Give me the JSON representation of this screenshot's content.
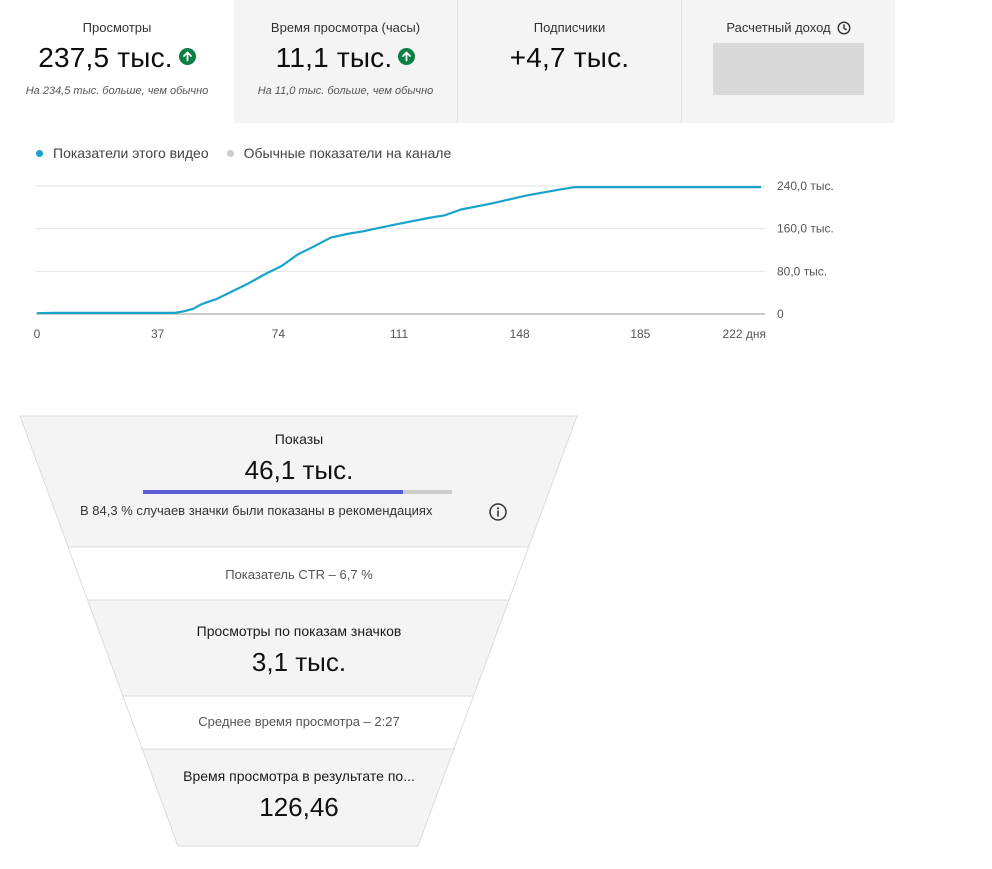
{
  "metrics": [
    {
      "label": "Просмотры",
      "value": "237,5 тыс.",
      "trend": "up",
      "note": "На 234,5 тыс. больше, чем обычно"
    },
    {
      "label": "Время просмотра (часы)",
      "value": "11,1 тыс.",
      "trend": "up",
      "note": "На 11,0 тыс. больше, чем обычно"
    },
    {
      "label": "Подписчики",
      "value": "+4,7 тыс."
    },
    {
      "label": "Расчетный доход",
      "icon": "clock-icon",
      "masked": true
    }
  ],
  "legend": [
    {
      "label": "Показатели этого видео",
      "color": "#1aa3c8"
    },
    {
      "label": "Обычные показатели на канале",
      "color": "#cccccc"
    }
  ],
  "chart_data": {
    "type": "line",
    "x_tick_labels": [
      "0",
      "37",
      "74",
      "111",
      "148",
      "185",
      "222 дня"
    ],
    "x_ticks": [
      0,
      37,
      74,
      111,
      148,
      185,
      222
    ],
    "y_tick_labels": [
      "240,0 тыс.",
      "160,0 тыс.",
      "80,0 тыс.",
      "0"
    ],
    "y_ticks": [
      240000,
      160000,
      80000,
      0
    ],
    "xlim": [
      0,
      222
    ],
    "ylim": [
      0,
      240000
    ],
    "grid": true,
    "series": [
      {
        "name": "Показатели этого видео",
        "color": "#1aa3c8",
        "x": [
          0,
          5,
          42,
          45,
          48,
          50,
          52,
          55,
          60,
          65,
          70,
          75,
          80,
          85,
          90,
          95,
          100,
          110,
          120,
          125,
          130,
          140,
          150,
          160,
          165,
          170,
          222
        ],
        "y": [
          1500,
          2000,
          2000,
          5000,
          10000,
          17000,
          22000,
          28000,
          43000,
          58000,
          75000,
          90000,
          112000,
          127000,
          143000,
          150000,
          155000,
          168000,
          180000,
          185000,
          196000,
          208000,
          222000,
          233000,
          238000,
          238000,
          238000
        ]
      }
    ]
  },
  "funnel": {
    "impressions": {
      "label": "Показы",
      "value": "46,1 тыс.",
      "share": 0.843,
      "note": "В 84,3 % случаев значки были показаны в рекомендациях"
    },
    "ctr": "Показатель CTR – 6,7 %",
    "views": {
      "label": "Просмотры по показам значков",
      "value": "3,1 тыс."
    },
    "avg_time": "Среднее время просмотра – 2:27",
    "watch_time": {
      "label": "Время просмотра в результате по...",
      "value": "126,46"
    }
  }
}
